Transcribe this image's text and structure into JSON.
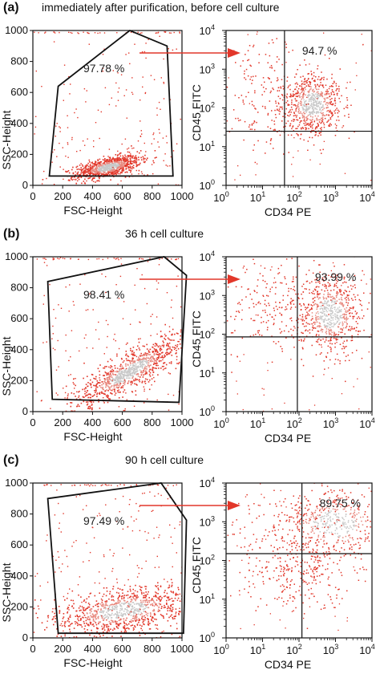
{
  "chart_data": [
    {
      "panel": "(a)",
      "title": "immediately after purification, before cell culture",
      "scatter": {
        "type": "scatter",
        "xlabel": "FSC-Height",
        "ylabel": "SSC-Height",
        "xlim": [
          0,
          1000
        ],
        "ylim": [
          0,
          1000
        ],
        "xticks": [
          "0",
          "200",
          "400",
          "600",
          "800",
          "1000"
        ],
        "yticks": [
          "0",
          "200",
          "400",
          "600",
          "800",
          "1000"
        ],
        "gate_percent": "97.78 %",
        "gate": [
          [
            110,
            60
          ],
          [
            170,
            640
          ],
          [
            650,
            1000
          ],
          [
            900,
            900
          ],
          [
            940,
            60
          ]
        ],
        "cluster": {
          "center": [
            500,
            120
          ],
          "spread": [
            110,
            30
          ],
          "angle": 12
        }
      },
      "quadrant": {
        "type": "scatter",
        "xlabel": "CD34 PE",
        "ylabel": "CD45 FITC",
        "scale": "log",
        "xlim": [
          1,
          10000
        ],
        "ylim": [
          1,
          10000
        ],
        "xtick_exponents": [
          "0",
          "1",
          "2",
          "3",
          "4"
        ],
        "ytick_exponents": [
          "0",
          "1",
          "2",
          "3",
          "4"
        ],
        "quadrant_x": 40,
        "quadrant_y": 25,
        "gate_percent": "94.7 %",
        "clusters": [
          {
            "center": [
              230,
              130
            ],
            "spread": [
              0.18,
              0.18
            ],
            "weight": 0.8
          },
          {
            "center": [
              10,
              250
            ],
            "spread": [
              0.3,
              0.35
            ],
            "weight": 0.2
          }
        ]
      }
    },
    {
      "panel": "(b)",
      "title": "36 h cell culture",
      "scatter": {
        "type": "scatter",
        "xlabel": "FSC-Height",
        "ylabel": "SSC-Height",
        "xlim": [
          0,
          1000
        ],
        "ylim": [
          0,
          1000
        ],
        "xticks": [
          "0",
          "200",
          "400",
          "600",
          "800",
          "1000"
        ],
        "yticks": [
          "0",
          "200",
          "400",
          "600",
          "800",
          "1000"
        ],
        "gate_percent": "98.41 %",
        "gate": [
          [
            100,
            840
          ],
          [
            130,
            80
          ],
          [
            980,
            60
          ],
          [
            1030,
            880
          ],
          [
            880,
            1000
          ]
        ],
        "cluster": {
          "center": [
            640,
            260
          ],
          "spread": [
            200,
            55
          ],
          "angle": 30
        }
      },
      "quadrant": {
        "type": "scatter",
        "xlabel": "CD34 PE",
        "ylabel": "CD45 FITC",
        "scale": "log",
        "xlim": [
          1,
          10000
        ],
        "ylim": [
          1,
          10000
        ],
        "xtick_exponents": [
          "0",
          "1",
          "2",
          "3",
          "4"
        ],
        "ytick_exponents": [
          "0",
          "1",
          "2",
          "3",
          "4"
        ],
        "quadrant_x": 90,
        "quadrant_y": 85,
        "gate_percent": "93.99 %",
        "clusters": [
          {
            "center": [
              700,
              350
            ],
            "spread": [
              0.2,
              0.22
            ],
            "weight": 0.75
          },
          {
            "center": [
              15,
              600
            ],
            "spread": [
              0.35,
              0.3
            ],
            "weight": 0.25
          }
        ]
      }
    },
    {
      "panel": "(c)",
      "title": "90 h cell culture",
      "scatter": {
        "type": "scatter",
        "xlabel": "FSC-Height",
        "ylabel": "SSC-Height",
        "xlim": [
          0,
          1000
        ],
        "ylim": [
          0,
          1000
        ],
        "xticks": [
          "0",
          "200",
          "400",
          "600",
          "800",
          "1000"
        ],
        "yticks": [
          "0",
          "200",
          "400",
          "600",
          "800",
          "1000"
        ],
        "gate_percent": "97.49 %",
        "gate": [
          [
            100,
            900
          ],
          [
            170,
            30
          ],
          [
            1010,
            30
          ],
          [
            1030,
            760
          ],
          [
            860,
            1000
          ]
        ],
        "cluster": {
          "center": [
            600,
            180
          ],
          "spread": [
            230,
            70
          ],
          "angle": 8
        }
      },
      "quadrant": {
        "type": "scatter",
        "xlabel": "CD34 PE",
        "ylabel": "CD45 FITC",
        "scale": "log",
        "xlim": [
          1,
          10000
        ],
        "ylim": [
          1,
          10000
        ],
        "xtick_exponents": [
          "0",
          "1",
          "2",
          "3",
          "4"
        ],
        "ytick_exponents": [
          "0",
          "1",
          "2",
          "3",
          "4"
        ],
        "quadrant_x": 120,
        "quadrant_y": 150,
        "gate_percent": "89.75 %",
        "clusters": [
          {
            "center": [
              900,
              900
            ],
            "spread": [
              0.35,
              0.2
            ],
            "weight": 0.55
          },
          {
            "center": [
              80,
              300
            ],
            "spread": [
              0.45,
              0.35
            ],
            "weight": 0.25
          },
          {
            "center": [
              150,
              50
            ],
            "spread": [
              0.35,
              0.2
            ],
            "weight": 0.2
          }
        ]
      }
    }
  ],
  "colors": {
    "dots": "#e2372a",
    "dense": "#c8c8c8",
    "arrow": "#e2372a",
    "frame": "#111111"
  }
}
